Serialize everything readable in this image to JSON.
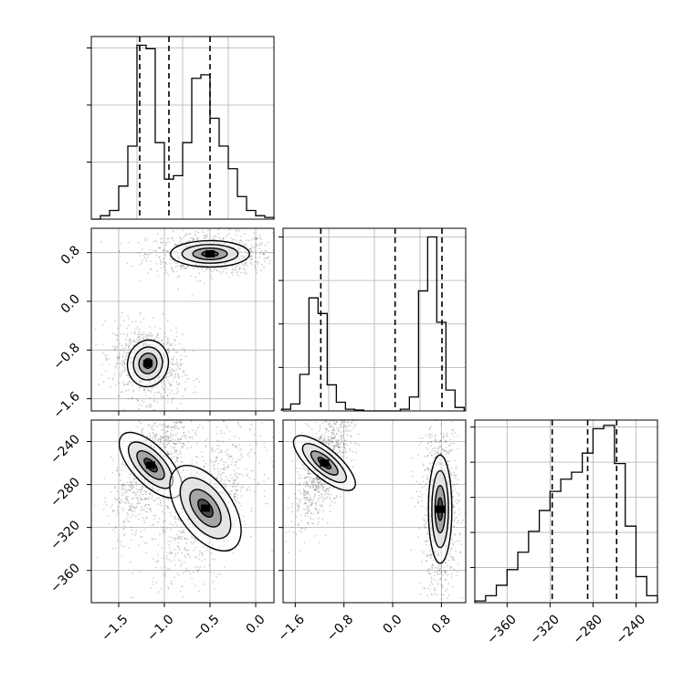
{
  "chart_data": [
    {
      "type": "histogram",
      "panel": "param-1-marginal",
      "x": [
        -1.75,
        -1.65,
        -1.55,
        -1.45,
        -1.35,
        -1.25,
        -1.15,
        -1.05,
        -0.95,
        -0.85,
        -0.75,
        -0.65,
        -0.55,
        -0.45,
        -0.35,
        -0.25,
        -0.15,
        -0.05,
        0.05,
        0.15
      ],
      "values": [
        0,
        0.02,
        0.05,
        0.19,
        0.42,
        1.0,
        0.98,
        0.44,
        0.23,
        0.25,
        0.44,
        0.81,
        0.83,
        0.58,
        0.42,
        0.29,
        0.13,
        0.05,
        0.02,
        0.01
      ],
      "xlim": [
        -1.8,
        0.2
      ],
      "quantile_lines": [
        -1.27,
        -0.95,
        -0.5
      ],
      "ytick_count": 3,
      "grid": true
    },
    {
      "type": "histogram",
      "panel": "param-2-marginal",
      "x": [
        -1.75,
        -1.6,
        -1.45,
        -1.3,
        -1.15,
        -1.0,
        -0.85,
        -0.7,
        -0.55,
        -0.4,
        -0.25,
        -0.1,
        0.05,
        0.2,
        0.35,
        0.5,
        0.65,
        0.8,
        0.95,
        1.1
      ],
      "values": [
        0.01,
        0.04,
        0.21,
        0.65,
        0.56,
        0.15,
        0.05,
        0.01,
        0.005,
        0.0,
        0.0,
        0.0,
        0.0,
        0.01,
        0.08,
        0.69,
        1.0,
        0.51,
        0.12,
        0.02
      ],
      "xlim": [
        -1.8,
        1.2
      ],
      "quantile_lines": [
        -1.18,
        0.04,
        0.81
      ],
      "ytick_count": 4,
      "grid": true
    },
    {
      "type": "histogram",
      "panel": "param-3-marginal",
      "x": [
        -385,
        -375,
        -365,
        -355,
        -345,
        -335,
        -325,
        -315,
        -305,
        -295,
        -285,
        -275,
        -265,
        -255,
        -245,
        -235,
        -225
      ],
      "values": [
        0.01,
        0.04,
        0.1,
        0.19,
        0.29,
        0.41,
        0.53,
        0.64,
        0.71,
        0.75,
        0.86,
        1.0,
        1.02,
        0.8,
        0.44,
        0.15,
        0.04
      ],
      "xlim": [
        -390,
        -220
      ],
      "xticks": [
        "−360",
        "−320",
        "−280",
        "−240"
      ],
      "xtick_values": [
        -360,
        -320,
        -280,
        -240
      ],
      "quantile_lines": [
        -318,
        -285,
        -258
      ],
      "ytick_count": 5,
      "grid": true
    },
    {
      "type": "contour-scatter",
      "panel": "param-1-vs-param-2",
      "xlim": [
        -1.8,
        0.2
      ],
      "ylim": [
        -1.8,
        1.2
      ],
      "yticks": [
        "0.8",
        "0.0",
        "−0.8",
        "−1.6"
      ],
      "ytick_values": [
        0.8,
        0.0,
        -0.8,
        -1.6
      ],
      "modes": [
        {
          "cx": -0.5,
          "cy": 0.78,
          "sx": 0.18,
          "sy": 0.09,
          "rho": 0.0
        },
        {
          "cx": -1.18,
          "cy": -1.02,
          "sx": 0.1,
          "sy": 0.16,
          "rho": -0.2
        }
      ],
      "grid": true
    },
    {
      "type": "contour-scatter",
      "panel": "param-1-vs-param-3",
      "xlim": [
        -1.8,
        0.2
      ],
      "ylim": [
        -390,
        -220
      ],
      "xticks": [
        "−1.5",
        "−1.0",
        "−0.5",
        "0.0"
      ],
      "xtick_values": [
        -1.5,
        -1.0,
        -0.5,
        0.0
      ],
      "yticks": [
        "−240",
        "−280",
        "−320",
        "−360"
      ],
      "ytick_values": [
        -240,
        -280,
        -320,
        -360
      ],
      "modes": [
        {
          "cx": -1.15,
          "cy": -262,
          "sx": 0.11,
          "sy": 16,
          "rho": 0.65
        },
        {
          "cx": -0.55,
          "cy": -302,
          "sx": 0.15,
          "sy": 19,
          "rho": 0.55
        }
      ],
      "grid": true
    },
    {
      "type": "contour-scatter",
      "panel": "param-2-vs-param-3",
      "xlim": [
        -1.8,
        1.2
      ],
      "ylim": [
        -390,
        -220
      ],
      "xticks": [
        "−1.6",
        "−0.8",
        "0.0",
        "0.8"
      ],
      "xtick_values": [
        -1.6,
        -0.8,
        0.0,
        0.8
      ],
      "modes": [
        {
          "cx": -1.12,
          "cy": -260,
          "sx": 0.13,
          "sy": 15,
          "rho": 0.7
        },
        {
          "cx": 0.78,
          "cy": -303,
          "sx": 0.08,
          "sy": 21,
          "rho": 0.0
        }
      ],
      "grid": true
    }
  ],
  "colors": {
    "line": "#000000",
    "grid": "#b0b0b0",
    "points": "#000000",
    "fill": "#808080"
  }
}
